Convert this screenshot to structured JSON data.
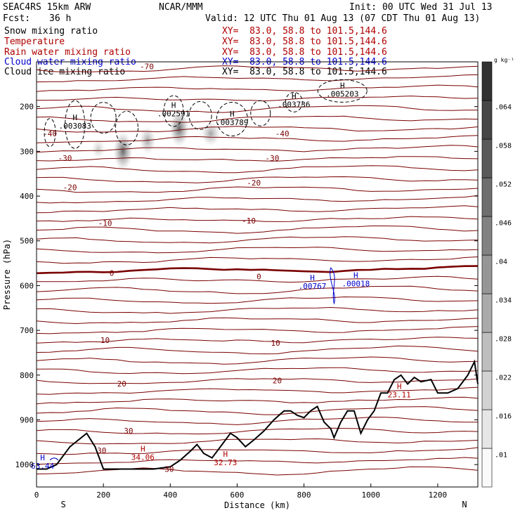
{
  "header": {
    "model": "SEAC4RS 15km ARW",
    "center": "NCAR/MMM",
    "init": "Init: 00 UTC Wed 31 Jul 13",
    "fcst_label": "Fcst:",
    "fcst_value": "36 h",
    "valid": "Valid: 12 UTC Thu 01 Aug 13 (07 CDT Thu 01 Aug 13)"
  },
  "fields": [
    {
      "name": "Snow mixing ratio",
      "xy": "XY=  83.0, 58.8 to 101.5,144.6",
      "color": "#000000"
    },
    {
      "name": "Temperature",
      "xy": "XY=  83.0, 58.8 to 101.5,144.6",
      "color": "#b00000"
    },
    {
      "name": "Rain water mixing ratio",
      "xy": "XY=  83.0, 58.8 to 101.5,144.6",
      "color": "#b00000"
    },
    {
      "name": "Cloud water mixing ratio",
      "xy": "XY=  83.0, 58.8 to 101.5,144.6",
      "color": "#0000cc"
    },
    {
      "name": "Cloud ice mixing ratio",
      "xy": "XY=  83.0, 58.8 to 101.5,144.6",
      "color": "#000000"
    }
  ],
  "chart_data": {
    "type": "contour",
    "xlabel": "Distance (km)",
    "ylabel": "Pressure (hPa)",
    "xlim": [
      0,
      1320
    ],
    "ylim": [
      1050,
      100
    ],
    "x_ticks": [
      0,
      200,
      400,
      600,
      800,
      1000,
      1200
    ],
    "y_ticks": [
      200,
      300,
      400,
      500,
      600,
      700,
      800,
      900,
      1000
    ],
    "x_end_labels": [
      "S",
      "N"
    ],
    "colorbar": {
      "unit": "g kg⁻¹",
      "labels": [
        ".01",
        ".016",
        ".022",
        ".028",
        ".034",
        ".04",
        ".046",
        ".052",
        ".058",
        ".064"
      ]
    },
    "temperature_labels": [
      {
        "text": "-70",
        "x": 330,
        "p": 110
      },
      {
        "text": "-40",
        "x": 40,
        "p": 260
      },
      {
        "text": "-40",
        "x": 735,
        "p": 260
      },
      {
        "text": "-30",
        "x": 85,
        "p": 315
      },
      {
        "text": "-30",
        "x": 705,
        "p": 315
      },
      {
        "text": "-20",
        "x": 100,
        "p": 380
      },
      {
        "text": "-20",
        "x": 650,
        "p": 370
      },
      {
        "text": "-10",
        "x": 205,
        "p": 460
      },
      {
        "text": "-10",
        "x": 635,
        "p": 455
      },
      {
        "text": "0",
        "x": 225,
        "p": 572
      },
      {
        "text": "0",
        "x": 665,
        "p": 580
      },
      {
        "text": "10",
        "x": 205,
        "p": 722
      },
      {
        "text": "10",
        "x": 715,
        "p": 728
      },
      {
        "text": "20",
        "x": 255,
        "p": 819
      },
      {
        "text": "20",
        "x": 720,
        "p": 812
      },
      {
        "text": "30",
        "x": 275,
        "p": 924
      },
      {
        "text": "30",
        "x": 397,
        "p": 1010
      },
      {
        "text": "30",
        "x": 195,
        "p": 968
      }
    ],
    "maxima": [
      {
        "label": "H",
        "value": ".003083",
        "x": 115,
        "p": 240,
        "color": "#000000"
      },
      {
        "label": "H",
        "value": ".002591",
        "x": 410,
        "p": 212,
        "color": "#000000"
      },
      {
        "label": "H",
        "value": ".003789",
        "x": 585,
        "p": 232,
        "color": "#000000"
      },
      {
        "label": "H",
        "value": ".003736",
        "x": 770,
        "p": 192,
        "color": "#000000"
      },
      {
        "label": "H",
        "value": ".005203",
        "x": 915,
        "p": 168,
        "color": "#000000"
      },
      {
        "label": "H",
        "value": ".00767",
        "x": 825,
        "p": 598,
        "color": "#0000cc"
      },
      {
        "label": "H",
        "value": ".00018",
        "x": 955,
        "p": 592,
        "color": "#0000cc"
      },
      {
        "label": "H",
        "value": "34.06",
        "x": 318,
        "p": 980,
        "color": "#b00000"
      },
      {
        "label": "H",
        "value": "32.73",
        "x": 565,
        "p": 992,
        "color": "#b00000"
      },
      {
        "label": "H",
        "value": "23.11",
        "x": 1085,
        "p": 840,
        "color": "#b00000"
      },
      {
        "label": "H",
        "value": "63.44",
        "x": 18,
        "p": 1000,
        "color": "#0000cc"
      }
    ],
    "terrain": [
      [
        0,
        1010
      ],
      [
        30,
        1010
      ],
      [
        60,
        1000
      ],
      [
        100,
        960
      ],
      [
        150,
        930
      ],
      [
        175,
        960
      ],
      [
        200,
        1010
      ],
      [
        250,
        1010
      ],
      [
        300,
        1010
      ],
      [
        350,
        1010
      ],
      [
        400,
        1005
      ],
      [
        430,
        990
      ],
      [
        460,
        970
      ],
      [
        480,
        955
      ],
      [
        500,
        975
      ],
      [
        525,
        985
      ],
      [
        550,
        960
      ],
      [
        580,
        930
      ],
      [
        600,
        940
      ],
      [
        625,
        960
      ],
      [
        650,
        945
      ],
      [
        680,
        925
      ],
      [
        710,
        900
      ],
      [
        740,
        880
      ],
      [
        760,
        880
      ],
      [
        780,
        890
      ],
      [
        800,
        895
      ],
      [
        820,
        880
      ],
      [
        840,
        870
      ],
      [
        860,
        905
      ],
      [
        880,
        920
      ],
      [
        890,
        940
      ],
      [
        910,
        905
      ],
      [
        930,
        880
      ],
      [
        950,
        880
      ],
      [
        970,
        930
      ],
      [
        990,
        900
      ],
      [
        1010,
        880
      ],
      [
        1030,
        840
      ],
      [
        1050,
        840
      ],
      [
        1070,
        810
      ],
      [
        1090,
        800
      ],
      [
        1110,
        820
      ],
      [
        1130,
        805
      ],
      [
        1150,
        815
      ],
      [
        1180,
        810
      ],
      [
        1200,
        840
      ],
      [
        1230,
        840
      ],
      [
        1260,
        830
      ],
      [
        1290,
        800
      ],
      [
        1310,
        770
      ],
      [
        1320,
        820
      ]
    ]
  }
}
